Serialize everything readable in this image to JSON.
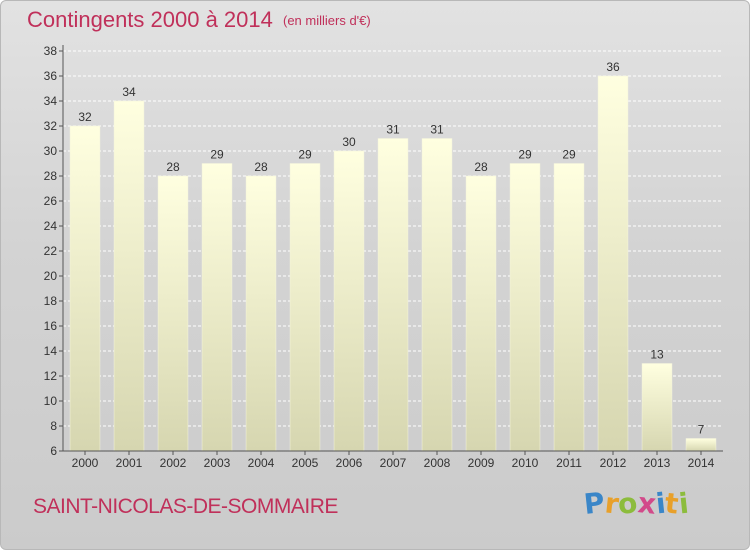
{
  "chart_data": {
    "type": "bar",
    "title": "Contingents 2000 à 2014",
    "subtitle": "(en milliers d'€)",
    "categories": [
      "2000",
      "2001",
      "2002",
      "2003",
      "2004",
      "2005",
      "2006",
      "2007",
      "2008",
      "2009",
      "2010",
      "2011",
      "2012",
      "2013",
      "2014"
    ],
    "values": [
      32,
      34,
      28,
      29,
      28,
      29,
      30,
      31,
      31,
      28,
      29,
      29,
      36,
      13,
      7
    ],
    "ylim": [
      6,
      38
    ],
    "yticks": [
      6,
      8,
      10,
      12,
      14,
      16,
      18,
      20,
      22,
      24,
      26,
      28,
      30,
      32,
      34,
      36,
      38
    ],
    "grid": true,
    "colors": {
      "bar_top": "#ffffe0",
      "bar_bottom": "#d6d6b0",
      "text": "#c0305a",
      "grid": "#ffffff"
    }
  },
  "footer": {
    "commune": "SAINT-NICOLAS-DE-SOMMAIRE",
    "logo_letters": [
      {
        "ch": "P",
        "color": "#3a86c8"
      },
      {
        "ch": "r",
        "color": "#e8a02a"
      },
      {
        "ch": "o",
        "color": "#8cbc3c"
      },
      {
        "ch": "x",
        "color": "#d24a8a"
      },
      {
        "ch": "i",
        "color": "#3a86c8"
      },
      {
        "ch": "t",
        "color": "#e8a02a"
      },
      {
        "ch": "i",
        "color": "#8cbc3c"
      }
    ]
  }
}
